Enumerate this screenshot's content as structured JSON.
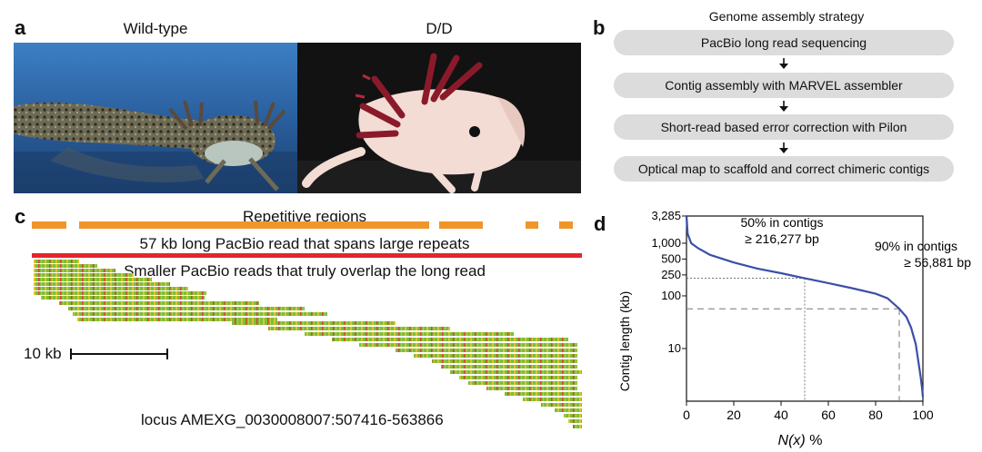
{
  "panels": {
    "a": {
      "letter": "a",
      "left_title": "Wild-type",
      "right_title": "D/D",
      "colors": {
        "water": "#2a5f9e",
        "dark_bg": "#121212",
        "leucistic": "#f2dcd4",
        "gills": "#8a1a2a"
      }
    },
    "b": {
      "letter": "b",
      "title": "Genome assembly strategy",
      "steps": [
        "PacBio long read sequencing",
        "Contig assembly with MARVEL assembler",
        "Short-read based error correction with Pilon",
        "Optical map to scaffold and correct chimeric contigs"
      ],
      "step_color": "#dcdcdc"
    },
    "c": {
      "letter": "c",
      "repeats_label": "Repetitive regions",
      "long_read_label": "57 kb long PacBio read that spans large repeats",
      "short_reads_label": "Smaller PacBio reads that truly overlap the long read",
      "scale_label": "10 kb",
      "locus_label": "locus  AMEXG_0030008007:507416-563866",
      "colors": {
        "repeats": "#f0952a",
        "long_read": "#e3262c",
        "read_green": "#7dbe3a",
        "read_yellow": "#d8c72e",
        "read_red": "#d4483a"
      }
    },
    "d": {
      "letter": "d",
      "ylabel": "Contig length (kb)",
      "xlabel_italic": "N(x)",
      "xlabel_suffix": " %",
      "annotation_50_line1": "50% in contigs",
      "annotation_50_line2": "≥ 216,277 bp",
      "annotation_90_line1": "90% in contigs",
      "annotation_90_line2": "≥ 56,881 bp"
    }
  },
  "chart_data": {
    "type": "line",
    "xlabel": "N(x) %",
    "ylabel": "Contig length (kb)",
    "xlim": [
      0,
      100
    ],
    "ylim": [
      1,
      3285
    ],
    "yscale": "log",
    "xticks": [
      0,
      20,
      40,
      60,
      80,
      100
    ],
    "yticks": [
      10,
      100,
      250,
      500,
      1000,
      3285
    ],
    "ytick_labels": [
      "10",
      "100",
      "250",
      "500",
      "1,000",
      "3,285"
    ],
    "series": [
      {
        "color": "#3a4fa8",
        "x": [
          0,
          0.5,
          2,
          5,
          10,
          20,
          30,
          40,
          50,
          60,
          70,
          80,
          85,
          90,
          93,
          95,
          97,
          98,
          99,
          99.6,
          100
        ],
        "y": [
          3285,
          1500,
          1000,
          800,
          600,
          430,
          330,
          270,
          216,
          175,
          140,
          110,
          90,
          57,
          40,
          25,
          12,
          6,
          3,
          1.8,
          1.2
        ]
      }
    ],
    "reference_lines": [
      {
        "x": 50,
        "y": 216.277,
        "style": "dotted"
      },
      {
        "x": 90,
        "y": 56.881,
        "style": "dashed"
      }
    ],
    "grid": false
  }
}
